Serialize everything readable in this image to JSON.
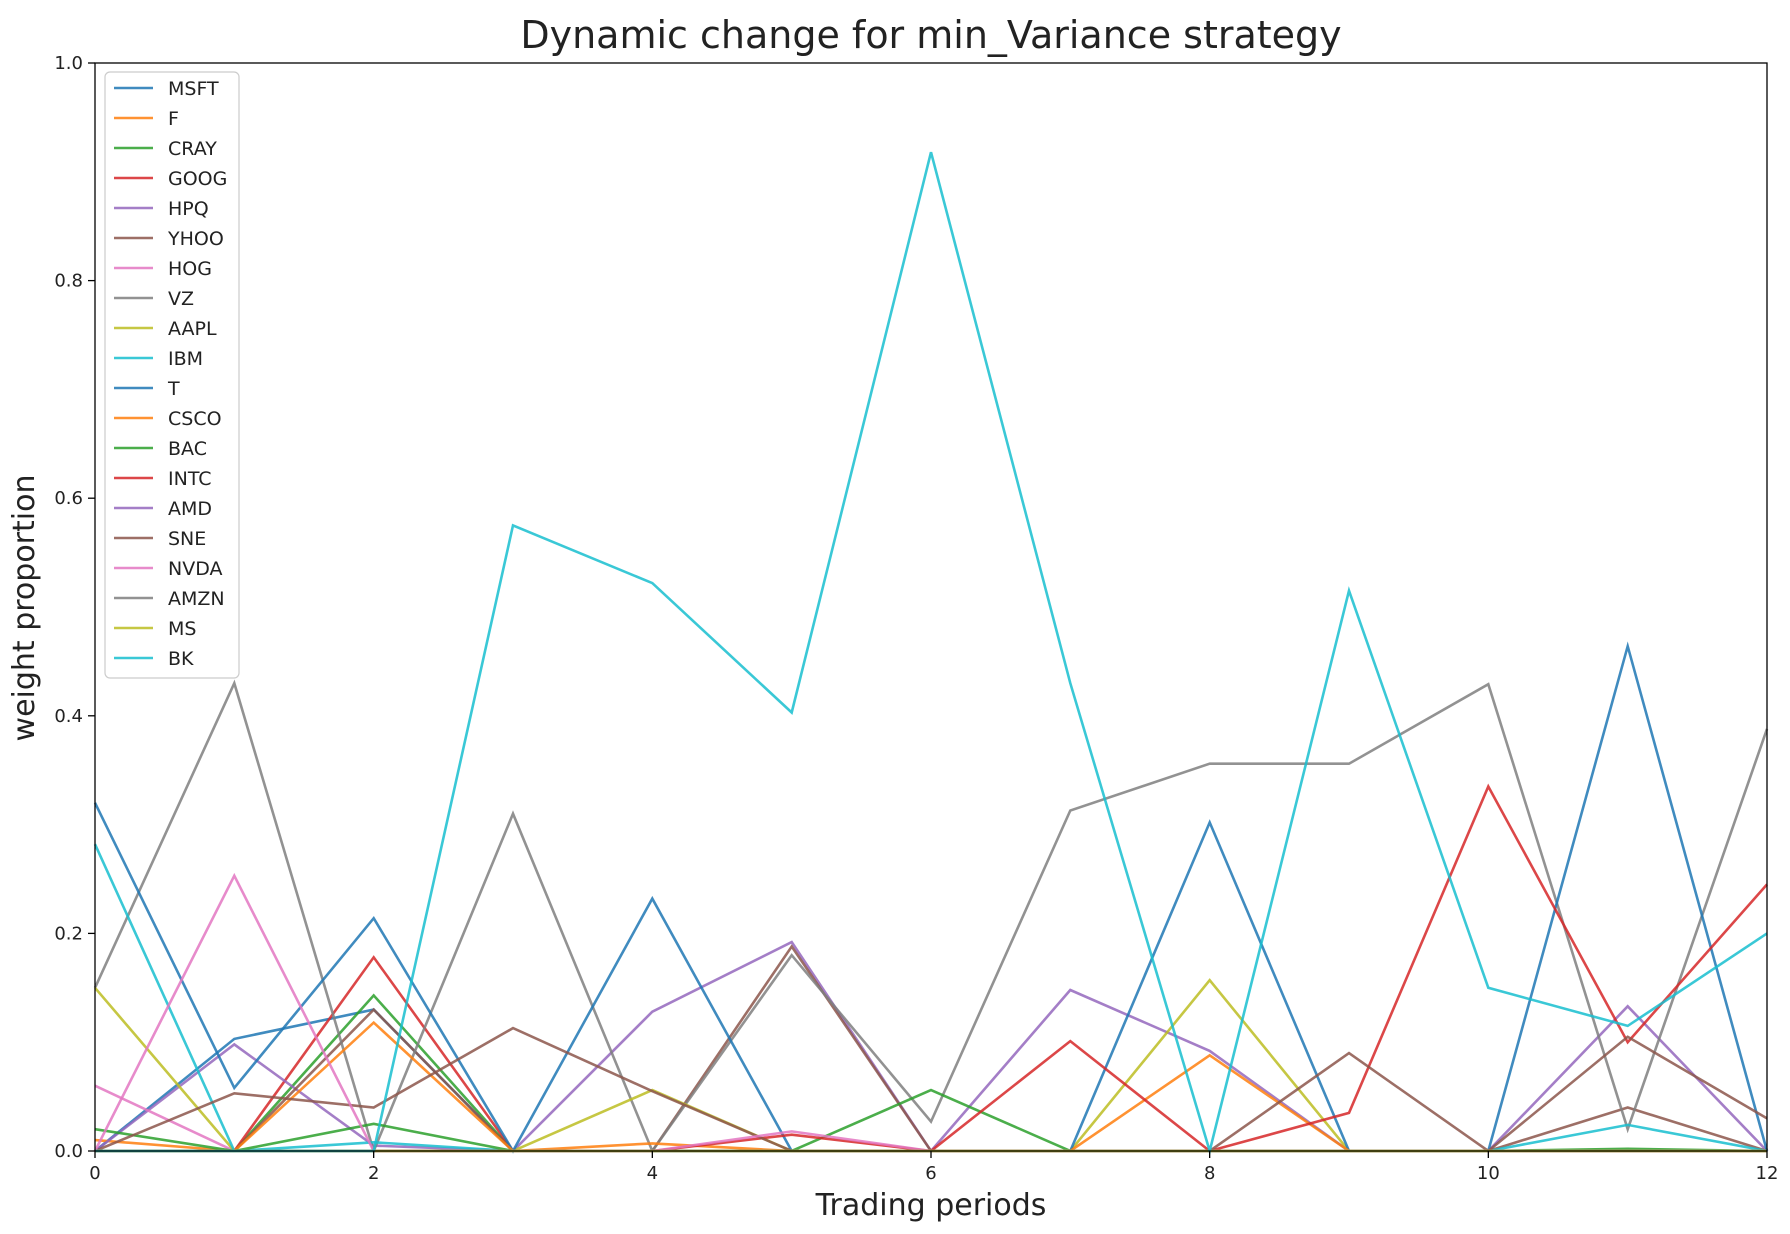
{
  "chart_data": {
    "type": "line",
    "title": "Dynamic change for min_Variance strategy",
    "xlabel": "Trading periods",
    "ylabel": "weight proportion",
    "xlim": [
      0,
      12
    ],
    "ylim": [
      0,
      1.0
    ],
    "x_ticks": [
      0,
      2,
      4,
      6,
      8,
      10,
      12
    ],
    "y_ticks": [
      0.0,
      0.2,
      0.4,
      0.6,
      0.8,
      1.0
    ],
    "y_tick_labels": [
      "0.0",
      "0.2",
      "0.4",
      "0.6",
      "0.8",
      "1.0"
    ],
    "grid": false,
    "legend_position": "top-left",
    "x": [
      0,
      1,
      2,
      3,
      4,
      5,
      6,
      7,
      8,
      9,
      10,
      11,
      12
    ],
    "series": [
      {
        "name": "MSFT",
        "color": "#1f77b4",
        "values": [
          0.0,
          0.103,
          0.13,
          0.0,
          0.0,
          0.0,
          0.0,
          0.0,
          0.0,
          0.0,
          0.0,
          0.0,
          0.0
        ]
      },
      {
        "name": "F",
        "color": "#ff7f0e",
        "values": [
          0.01,
          0.0,
          0.0,
          0.0,
          0.0,
          0.0,
          0.0,
          0.0,
          0.0,
          0.0,
          0.0,
          0.0,
          0.0
        ]
      },
      {
        "name": "CRAY",
        "color": "#2ca02c",
        "values": [
          0.0,
          0.0,
          0.143,
          0.0,
          0.0,
          0.0,
          0.0,
          0.0,
          0.0,
          0.0,
          0.0,
          0.0,
          0.0
        ]
      },
      {
        "name": "GOOG",
        "color": "#d62728",
        "values": [
          0.0,
          0.0,
          0.178,
          0.0,
          0.0,
          0.0,
          0.0,
          0.0,
          0.0,
          0.0,
          0.0,
          0.0,
          0.0
        ]
      },
      {
        "name": "HPQ",
        "color": "#9467bd",
        "values": [
          0.0,
          0.098,
          0.005,
          0.0,
          0.128,
          0.192,
          0.0,
          0.148,
          0.092,
          0.0,
          0.0,
          0.133,
          0.0
        ]
      },
      {
        "name": "YHOO",
        "color": "#8c564b",
        "values": [
          0.0,
          0.0,
          0.13,
          0.0,
          0.0,
          0.188,
          0.0,
          0.0,
          0.0,
          0.0,
          0.0,
          0.04,
          0.0
        ]
      },
      {
        "name": "HOG",
        "color": "#e377c2",
        "values": [
          0.06,
          0.0,
          0.0,
          0.0,
          0.0,
          0.0,
          0.0,
          0.0,
          0.0,
          0.0,
          0.0,
          0.0,
          0.0
        ]
      },
      {
        "name": "VZ",
        "color": "#7f7f7f",
        "values": [
          0.15,
          0.43,
          0.0,
          0.31,
          0.0,
          0.18,
          0.027,
          0.313,
          0.356,
          0.356,
          0.429,
          0.02,
          0.388
        ]
      },
      {
        "name": "AAPL",
        "color": "#bcbd22",
        "values": [
          0.15,
          0.0,
          0.0,
          0.0,
          0.056,
          0.0,
          0.0,
          0.0,
          0.157,
          0.0,
          0.0,
          0.0,
          0.0
        ]
      },
      {
        "name": "IBM",
        "color": "#17becf",
        "values": [
          0.282,
          0.0,
          0.008,
          0.0,
          0.0,
          0.0,
          0.0,
          0.0,
          0.0,
          0.0,
          0.0,
          0.024,
          0.0
        ]
      },
      {
        "name": "T",
        "color": "#1f77b4",
        "values": [
          0.32,
          0.058,
          0.214,
          0.0,
          0.232,
          0.0,
          0.0,
          0.0,
          0.302,
          0.0,
          0.0,
          0.464,
          0.0
        ]
      },
      {
        "name": "CSCO",
        "color": "#ff7f0e",
        "values": [
          0.0,
          0.0,
          0.118,
          0.0,
          0.007,
          0.0,
          0.0,
          0.0,
          0.088,
          0.0,
          0.0,
          0.0,
          0.0
        ]
      },
      {
        "name": "BAC",
        "color": "#2ca02c",
        "values": [
          0.02,
          0.0,
          0.025,
          0.0,
          0.0,
          0.0,
          0.056,
          0.0,
          0.0,
          0.0,
          0.0,
          0.002,
          0.0
        ]
      },
      {
        "name": "INTC",
        "color": "#d62728",
        "values": [
          0.0,
          0.0,
          0.0,
          0.0,
          0.0,
          0.015,
          0.0,
          0.101,
          0.0,
          0.035,
          0.335,
          0.1,
          0.245
        ]
      },
      {
        "name": "AMD",
        "color": "#9467bd",
        "values": [
          0.0,
          0.0,
          0.0,
          0.0,
          0.0,
          0.0,
          0.0,
          0.0,
          0.0,
          0.0,
          0.0,
          0.0,
          0.0
        ]
      },
      {
        "name": "SNE",
        "color": "#8c564b",
        "values": [
          0.0,
          0.053,
          0.04,
          0.113,
          0.055,
          0.0,
          0.0,
          0.0,
          0.0,
          0.09,
          0.0,
          0.105,
          0.03
        ]
      },
      {
        "name": "NVDA",
        "color": "#e377c2",
        "values": [
          0.0,
          0.253,
          0.0,
          0.0,
          0.0,
          0.018,
          0.0,
          0.0,
          0.0,
          0.0,
          0.0,
          0.0,
          0.0
        ]
      },
      {
        "name": "AMZN",
        "color": "#7f7f7f",
        "values": [
          0.0,
          0.0,
          0.0,
          0.0,
          0.0,
          0.0,
          0.0,
          0.0,
          0.0,
          0.0,
          0.0,
          0.0,
          0.0
        ]
      },
      {
        "name": "MS",
        "color": "#bcbd22",
        "values": [
          0.0,
          0.0,
          0.0,
          0.0,
          0.0,
          0.0,
          0.0,
          0.0,
          0.0,
          0.0,
          0.0,
          0.0,
          0.0
        ]
      },
      {
        "name": "BK",
        "color": "#17becf",
        "values": [
          0.0,
          0.0,
          0.0,
          0.575,
          0.522,
          0.403,
          0.918,
          0.43,
          0.0,
          0.515,
          0.15,
          0.115,
          0.2
        ]
      }
    ]
  }
}
